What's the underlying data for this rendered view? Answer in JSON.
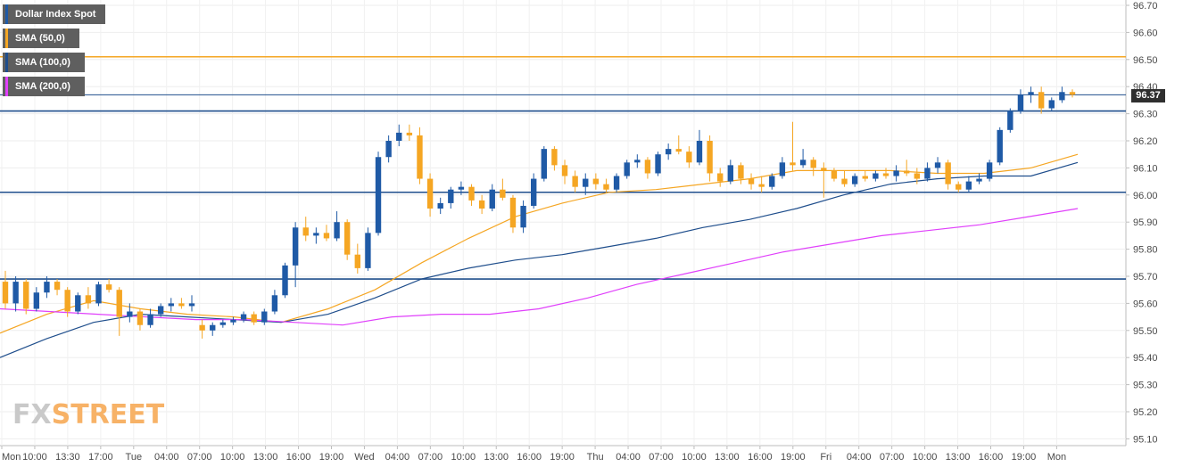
{
  "chart_data": {
    "type": "candlestick",
    "title": "Dollar Index Spot",
    "legend": [
      {
        "name": "Dollar Index Spot",
        "color": "#1f5aa6"
      },
      {
        "name": "SMA (50,0)",
        "color": "#f5a623"
      },
      {
        "name": "SMA (100,0)",
        "color": "#1f4e8c"
      },
      {
        "name": "SMA (200,0)",
        "color": "#e040fb"
      }
    ],
    "ylim": [
      95.07,
      96.73
    ],
    "y_ticks": [
      "96.70",
      "96.60",
      "96.50",
      "96.40",
      "96.30",
      "96.20",
      "96.10",
      "96.00",
      "95.90",
      "95.80",
      "95.70",
      "95.60",
      "95.50",
      "95.40",
      "95.30",
      "95.20",
      "95.10"
    ],
    "x_ticks": [
      "Mon",
      "10:00",
      "13:30",
      "17:00",
      "Tue",
      "04:00",
      "07:00",
      "10:00",
      "13:00",
      "16:00",
      "19:00",
      "Wed",
      "04:00",
      "07:00",
      "10:00",
      "13:00",
      "16:00",
      "19:00",
      "Thu",
      "04:00",
      "07:00",
      "10:00",
      "13:00",
      "16:00",
      "19:00",
      "Fri",
      "04:00",
      "07:00",
      "10:00",
      "13:00",
      "16:00",
      "19:00",
      "Mon"
    ],
    "last_price": "96.37",
    "horizontal_levels": [
      {
        "value": 96.51,
        "color": "#f5a623"
      },
      {
        "value": 96.37,
        "color": "#1f4e8c"
      },
      {
        "value": 96.31,
        "color": "#1f4e8c"
      },
      {
        "value": 96.01,
        "color": "#1f4e8c"
      },
      {
        "value": 95.69,
        "color": "#1f4e8c"
      }
    ],
    "candles": [
      {
        "o": 95.68,
        "h": 95.72,
        "l": 95.58,
        "c": 95.6
      },
      {
        "o": 95.6,
        "h": 95.7,
        "l": 95.57,
        "c": 95.68
      },
      {
        "o": 95.68,
        "h": 95.69,
        "l": 95.56,
        "c": 95.58
      },
      {
        "o": 95.58,
        "h": 95.66,
        "l": 95.57,
        "c": 95.64
      },
      {
        "o": 95.64,
        "h": 95.7,
        "l": 95.62,
        "c": 95.68
      },
      {
        "o": 95.68,
        "h": 95.69,
        "l": 95.63,
        "c": 95.65
      },
      {
        "o": 95.65,
        "h": 95.66,
        "l": 95.55,
        "c": 95.57
      },
      {
        "o": 95.57,
        "h": 95.64,
        "l": 95.56,
        "c": 95.63
      },
      {
        "o": 95.63,
        "h": 95.66,
        "l": 95.58,
        "c": 95.6
      },
      {
        "o": 95.6,
        "h": 95.68,
        "l": 95.59,
        "c": 95.67
      },
      {
        "o": 95.67,
        "h": 95.69,
        "l": 95.64,
        "c": 95.65
      },
      {
        "o": 95.65,
        "h": 95.66,
        "l": 95.48,
        "c": 95.55
      },
      {
        "o": 95.55,
        "h": 95.6,
        "l": 95.53,
        "c": 95.57
      },
      {
        "o": 95.57,
        "h": 95.58,
        "l": 95.5,
        "c": 95.52
      },
      {
        "o": 95.52,
        "h": 95.58,
        "l": 95.51,
        "c": 95.56
      },
      {
        "o": 95.56,
        "h": 95.6,
        "l": 95.55,
        "c": 95.59
      },
      {
        "o": 95.59,
        "h": 95.62,
        "l": 95.57,
        "c": 95.6
      },
      {
        "o": 95.6,
        "h": 95.62,
        "l": 95.58,
        "c": 95.59
      },
      {
        "o": 95.59,
        "h": 95.63,
        "l": 95.57,
        "c": 95.6
      },
      {
        "o": 95.52,
        "h": 95.54,
        "l": 95.47,
        "c": 95.5
      },
      {
        "o": 95.5,
        "h": 95.53,
        "l": 95.48,
        "c": 95.52
      },
      {
        "o": 95.52,
        "h": 95.54,
        "l": 95.51,
        "c": 95.53
      },
      {
        "o": 95.53,
        "h": 95.55,
        "l": 95.52,
        "c": 95.54
      },
      {
        "o": 95.54,
        "h": 95.57,
        "l": 95.53,
        "c": 95.56
      },
      {
        "o": 95.56,
        "h": 95.57,
        "l": 95.52,
        "c": 95.53
      },
      {
        "o": 95.53,
        "h": 95.58,
        "l": 95.52,
        "c": 95.57
      },
      {
        "o": 95.57,
        "h": 95.65,
        "l": 95.56,
        "c": 95.63
      },
      {
        "o": 95.63,
        "h": 95.75,
        "l": 95.62,
        "c": 95.74
      },
      {
        "o": 95.74,
        "h": 95.9,
        "l": 95.66,
        "c": 95.88
      },
      {
        "o": 95.88,
        "h": 95.92,
        "l": 95.83,
        "c": 95.85
      },
      {
        "o": 95.85,
        "h": 95.88,
        "l": 95.82,
        "c": 95.86
      },
      {
        "o": 95.86,
        "h": 95.89,
        "l": 95.83,
        "c": 95.84
      },
      {
        "o": 95.84,
        "h": 95.94,
        "l": 95.83,
        "c": 95.9
      },
      {
        "o": 95.9,
        "h": 95.91,
        "l": 95.76,
        "c": 95.78
      },
      {
        "o": 95.78,
        "h": 95.82,
        "l": 95.71,
        "c": 95.73
      },
      {
        "o": 95.73,
        "h": 95.88,
        "l": 95.72,
        "c": 95.86
      },
      {
        "o": 95.86,
        "h": 96.16,
        "l": 95.85,
        "c": 96.14
      },
      {
        "o": 96.14,
        "h": 96.22,
        "l": 96.12,
        "c": 96.2
      },
      {
        "o": 96.2,
        "h": 96.26,
        "l": 96.18,
        "c": 96.23
      },
      {
        "o": 96.23,
        "h": 96.26,
        "l": 96.2,
        "c": 96.22
      },
      {
        "o": 96.22,
        "h": 96.25,
        "l": 96.04,
        "c": 96.06
      },
      {
        "o": 96.06,
        "h": 96.08,
        "l": 95.92,
        "c": 95.95
      },
      {
        "o": 95.95,
        "h": 95.99,
        "l": 95.93,
        "c": 95.97
      },
      {
        "o": 95.97,
        "h": 96.03,
        "l": 95.95,
        "c": 96.02
      },
      {
        "o": 96.02,
        "h": 96.05,
        "l": 96.0,
        "c": 96.03
      },
      {
        "o": 96.03,
        "h": 96.04,
        "l": 95.96,
        "c": 95.98
      },
      {
        "o": 95.98,
        "h": 96.0,
        "l": 95.93,
        "c": 95.95
      },
      {
        "o": 95.95,
        "h": 96.04,
        "l": 95.94,
        "c": 96.02
      },
      {
        "o": 96.02,
        "h": 96.06,
        "l": 95.98,
        "c": 95.99
      },
      {
        "o": 95.99,
        "h": 96.0,
        "l": 95.86,
        "c": 95.88
      },
      {
        "o": 95.88,
        "h": 95.98,
        "l": 95.86,
        "c": 95.96
      },
      {
        "o": 95.96,
        "h": 96.08,
        "l": 95.95,
        "c": 96.06
      },
      {
        "o": 96.06,
        "h": 96.18,
        "l": 96.05,
        "c": 96.17
      },
      {
        "o": 96.17,
        "h": 96.18,
        "l": 96.09,
        "c": 96.11
      },
      {
        "o": 96.11,
        "h": 96.13,
        "l": 96.04,
        "c": 96.07
      },
      {
        "o": 96.07,
        "h": 96.09,
        "l": 96.01,
        "c": 96.03
      },
      {
        "o": 96.03,
        "h": 96.08,
        "l": 96.0,
        "c": 96.06
      },
      {
        "o": 96.06,
        "h": 96.08,
        "l": 96.02,
        "c": 96.04
      },
      {
        "o": 96.04,
        "h": 96.06,
        "l": 96.01,
        "c": 96.02
      },
      {
        "o": 96.02,
        "h": 96.08,
        "l": 96.01,
        "c": 96.07
      },
      {
        "o": 96.07,
        "h": 96.13,
        "l": 96.06,
        "c": 96.12
      },
      {
        "o": 96.12,
        "h": 96.15,
        "l": 96.1,
        "c": 96.13
      },
      {
        "o": 96.13,
        "h": 96.14,
        "l": 96.06,
        "c": 96.08
      },
      {
        "o": 96.08,
        "h": 96.16,
        "l": 96.07,
        "c": 96.15
      },
      {
        "o": 96.15,
        "h": 96.19,
        "l": 96.13,
        "c": 96.17
      },
      {
        "o": 96.17,
        "h": 96.22,
        "l": 96.15,
        "c": 96.16
      },
      {
        "o": 96.16,
        "h": 96.18,
        "l": 96.1,
        "c": 96.12
      },
      {
        "o": 96.12,
        "h": 96.24,
        "l": 96.11,
        "c": 96.2
      },
      {
        "o": 96.2,
        "h": 96.22,
        "l": 96.05,
        "c": 96.08
      },
      {
        "o": 96.08,
        "h": 96.1,
        "l": 96.03,
        "c": 96.05
      },
      {
        "o": 96.05,
        "h": 96.13,
        "l": 96.04,
        "c": 96.11
      },
      {
        "o": 96.11,
        "h": 96.12,
        "l": 96.04,
        "c": 96.06
      },
      {
        "o": 96.06,
        "h": 96.08,
        "l": 96.02,
        "c": 96.04
      },
      {
        "o": 96.04,
        "h": 96.07,
        "l": 96.01,
        "c": 96.03
      },
      {
        "o": 96.03,
        "h": 96.08,
        "l": 96.02,
        "c": 96.07
      },
      {
        "o": 96.07,
        "h": 96.14,
        "l": 96.06,
        "c": 96.12
      },
      {
        "o": 96.12,
        "h": 96.27,
        "l": 96.09,
        "c": 96.11
      },
      {
        "o": 96.11,
        "h": 96.17,
        "l": 96.1,
        "c": 96.13
      },
      {
        "o": 96.13,
        "h": 96.14,
        "l": 96.07,
        "c": 96.1
      },
      {
        "o": 96.1,
        "h": 96.12,
        "l": 95.99,
        "c": 96.09
      },
      {
        "o": 96.09,
        "h": 96.1,
        "l": 96.05,
        "c": 96.06
      },
      {
        "o": 96.06,
        "h": 96.09,
        "l": 96.03,
        "c": 96.04
      },
      {
        "o": 96.04,
        "h": 96.08,
        "l": 96.03,
        "c": 96.07
      },
      {
        "o": 96.07,
        "h": 96.09,
        "l": 96.05,
        "c": 96.06
      },
      {
        "o": 96.06,
        "h": 96.09,
        "l": 96.05,
        "c": 96.08
      },
      {
        "o": 96.08,
        "h": 96.1,
        "l": 96.06,
        "c": 96.07
      },
      {
        "o": 96.07,
        "h": 96.11,
        "l": 96.05,
        "c": 96.09
      },
      {
        "o": 96.09,
        "h": 96.13,
        "l": 96.07,
        "c": 96.08
      },
      {
        "o": 96.08,
        "h": 96.1,
        "l": 96.04,
        "c": 96.06
      },
      {
        "o": 96.06,
        "h": 96.12,
        "l": 96.05,
        "c": 96.1
      },
      {
        "o": 96.1,
        "h": 96.14,
        "l": 96.08,
        "c": 96.12
      },
      {
        "o": 96.12,
        "h": 96.13,
        "l": 96.02,
        "c": 96.04
      },
      {
        "o": 96.04,
        "h": 96.05,
        "l": 96.01,
        "c": 96.02
      },
      {
        "o": 96.02,
        "h": 96.07,
        "l": 96.01,
        "c": 96.05
      },
      {
        "o": 96.05,
        "h": 96.08,
        "l": 96.04,
        "c": 96.06
      },
      {
        "o": 96.06,
        "h": 96.13,
        "l": 96.05,
        "c": 96.12
      },
      {
        "o": 96.12,
        "h": 96.25,
        "l": 96.11,
        "c": 96.24
      },
      {
        "o": 96.24,
        "h": 96.32,
        "l": 96.23,
        "c": 96.31
      },
      {
        "o": 96.31,
        "h": 96.39,
        "l": 96.3,
        "c": 96.37
      },
      {
        "o": 96.37,
        "h": 96.4,
        "l": 96.34,
        "c": 96.38
      },
      {
        "o": 96.38,
        "h": 96.4,
        "l": 96.3,
        "c": 96.32
      },
      {
        "o": 96.32,
        "h": 96.36,
        "l": 96.31,
        "c": 96.35
      },
      {
        "o": 96.35,
        "h": 96.4,
        "l": 96.34,
        "c": 96.38
      },
      {
        "o": 96.38,
        "h": 96.39,
        "l": 96.36,
        "c": 96.37
      }
    ],
    "sma": [
      {
        "name": "SMA (50,0)",
        "color": "#f5a623",
        "values": [
          95.49,
          95.56,
          95.61,
          95.58,
          95.56,
          95.55,
          95.53,
          95.58,
          95.65,
          95.75,
          95.84,
          95.92,
          95.97,
          96.01,
          96.02,
          96.04,
          96.06,
          96.09,
          96.09,
          96.09,
          96.08,
          96.08,
          96.1,
          96.15
        ]
      },
      {
        "name": "SMA (100,0)",
        "color": "#1f4e8c",
        "values": [
          95.4,
          95.47,
          95.53,
          95.56,
          95.55,
          95.54,
          95.53,
          95.56,
          95.62,
          95.69,
          95.73,
          95.76,
          95.78,
          95.81,
          95.84,
          95.88,
          95.91,
          95.95,
          96.0,
          96.04,
          96.06,
          96.07,
          96.07,
          96.12
        ]
      },
      {
        "name": "SMA (200,0)",
        "color": "#e040fb",
        "values": [
          95.58,
          95.57,
          95.56,
          95.55,
          95.54,
          95.54,
          95.53,
          95.52,
          95.55,
          95.56,
          95.56,
          95.58,
          95.62,
          95.67,
          95.71,
          95.75,
          95.79,
          95.82,
          95.85,
          95.87,
          95.89,
          95.92,
          95.95
        ]
      }
    ]
  },
  "watermark": {
    "part1": "FX",
    "part2": "STREET"
  }
}
